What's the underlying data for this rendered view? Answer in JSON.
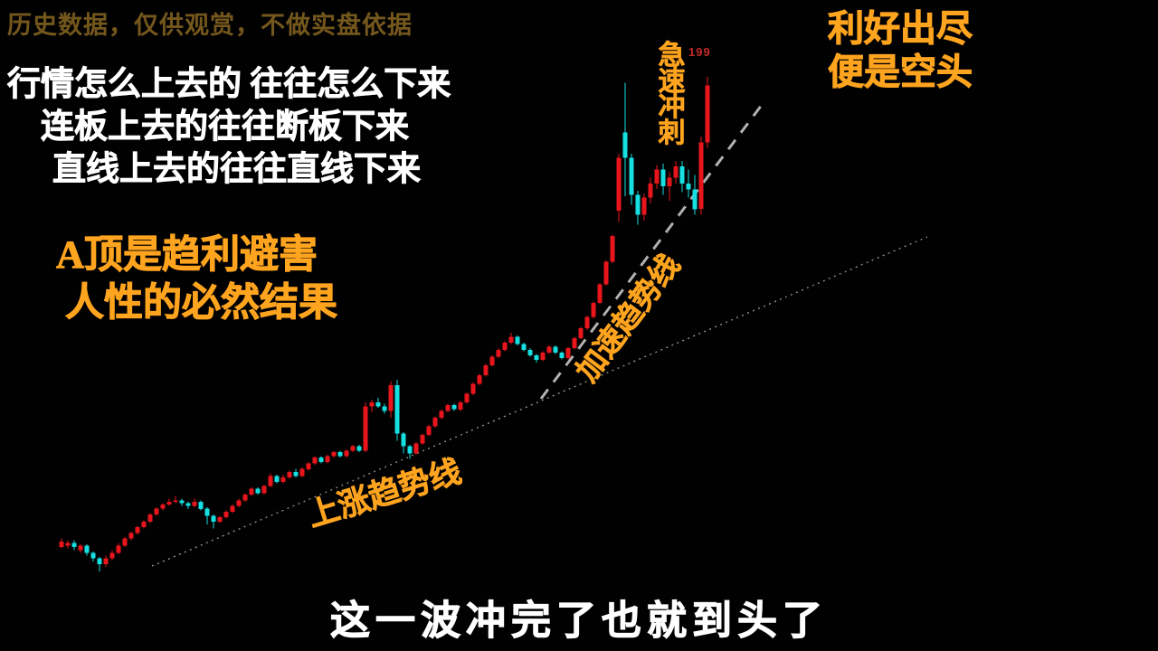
{
  "page": {
    "background": "#010101"
  },
  "disclaimer": {
    "text": "历史数据，仅供观赏，不做实盘依据",
    "color": "#74571c"
  },
  "left_block": {
    "color": "#ffffff",
    "lines": [
      "行情怎么上去的 往往怎么下来",
      "连板上去的往往断板下来",
      "直线上去的往往直线下来"
    ]
  },
  "thesis_block": {
    "color": "#ffa41e",
    "lines": [
      "A顶是趋利避害",
      "人性的必然结果"
    ]
  },
  "top_right_block": {
    "color": "#ffa41e",
    "lines": [
      "利好出尽",
      "便是空头"
    ]
  },
  "bottom_caption": {
    "text": "这一波冲完了也就到头了",
    "color": "#ffffff"
  },
  "chart_data": {
    "type": "candlestick",
    "title": "",
    "xlabel": "",
    "ylabel": "",
    "ylim": [
      24,
      200
    ],
    "grid": false,
    "up_color": "#e9151d",
    "down_color": "#16dfe2",
    "peak_label": {
      "text": "199",
      "value": 199,
      "color": "#c42a28"
    },
    "annotations": [
      {
        "id": "sprint",
        "text": "急速冲刺",
        "color": "#ffa41e",
        "orientation": "vertical"
      },
      {
        "id": "accel",
        "text": "加速趋势线",
        "color": "#ffa41e",
        "rotation_deg": -53
      },
      {
        "id": "rise",
        "text": "上涨趋势线",
        "color": "#ffa41e",
        "rotation_deg": -17
      }
    ],
    "trendlines": [
      {
        "name": "上涨趋势线",
        "style": "dotted",
        "color": "#8e8e7e"
      },
      {
        "name": "加速趋势线",
        "style": "dashed",
        "color": "#b0b0b0"
      }
    ],
    "candles_ohlc": [
      [
        33.5,
        36.5,
        33,
        35.5
      ],
      [
        34,
        36,
        33,
        35
      ],
      [
        35,
        36,
        32.5,
        33.5
      ],
      [
        32.5,
        34.5,
        31.5,
        34
      ],
      [
        34,
        34.5,
        30.5,
        31.5
      ],
      [
        31.5,
        32,
        28.5,
        29.5
      ],
      [
        29.5,
        30,
        25,
        27.5
      ],
      [
        27.5,
        30.5,
        26.5,
        29.5
      ],
      [
        29.5,
        32.5,
        29,
        31.5
      ],
      [
        31.5,
        35,
        31,
        34
      ],
      [
        34,
        37,
        33.5,
        36.5
      ],
      [
        36.5,
        39,
        36,
        38.5
      ],
      [
        38.5,
        41,
        38,
        40.5
      ],
      [
        40.5,
        43,
        40,
        42.5
      ],
      [
        42.5,
        45.5,
        42,
        45
      ],
      [
        45,
        47.5,
        44.5,
        47
      ],
      [
        47,
        49,
        46.5,
        48.5
      ],
      [
        48.5,
        50.5,
        48,
        49.5
      ],
      [
        49.5,
        51.5,
        49,
        50
      ],
      [
        50,
        50.5,
        48,
        49
      ],
      [
        49,
        49.5,
        47,
        48
      ],
      [
        48,
        50.5,
        47.5,
        49.5
      ],
      [
        49.5,
        50,
        46.5,
        47
      ],
      [
        47,
        47.5,
        41.5,
        44.5
      ],
      [
        44.5,
        45,
        40,
        42.5
      ],
      [
        42.5,
        44.5,
        42,
        44
      ],
      [
        44,
        46.5,
        43.5,
        46
      ],
      [
        46,
        48.5,
        45.5,
        48
      ],
      [
        48,
        50.5,
        47.5,
        50
      ],
      [
        50,
        52.5,
        49.5,
        52
      ],
      [
        52,
        54.5,
        51.5,
        54
      ],
      [
        54,
        54.5,
        52,
        52.5
      ],
      [
        52.5,
        55.5,
        52,
        55
      ],
      [
        55,
        59.5,
        54.5,
        58.5
      ],
      [
        58.5,
        59,
        56,
        56.5
      ],
      [
        56.5,
        59,
        56,
        58
      ],
      [
        58,
        60.5,
        57.5,
        60
      ],
      [
        60,
        61,
        58,
        58.5
      ],
      [
        58.5,
        61.5,
        58,
        61
      ],
      [
        61,
        63.5,
        60.5,
        63
      ],
      [
        63,
        65.5,
        62.5,
        65
      ],
      [
        65,
        65.5,
        63,
        63.5
      ],
      [
        63.5,
        66,
        63,
        65.5
      ],
      [
        65.5,
        67.5,
        65,
        67
      ],
      [
        67,
        67.5,
        65,
        65.5
      ],
      [
        65.5,
        68,
        65,
        67.5
      ],
      [
        67.5,
        69.5,
        67,
        69
      ],
      [
        69,
        69.5,
        67,
        67.5
      ],
      [
        67.5,
        84.5,
        67,
        83
      ],
      [
        83,
        85.5,
        81,
        84.5
      ],
      [
        84.5,
        86,
        82.5,
        83
      ],
      [
        83,
        84,
        80.5,
        81.5
      ],
      [
        81.5,
        92,
        79,
        90.5
      ],
      [
        90.5,
        92.5,
        71,
        73.5
      ],
      [
        73.5,
        74,
        66.5,
        69
      ],
      [
        69,
        69.5,
        64.5,
        66.5
      ],
      [
        66.5,
        70.5,
        66,
        70
      ],
      [
        70,
        73.5,
        69.5,
        73
      ],
      [
        73,
        76.5,
        72.5,
        76
      ],
      [
        76,
        79.5,
        75.5,
        79
      ],
      [
        79,
        82,
        78.5,
        81.5
      ],
      [
        81.5,
        84,
        81,
        83.5
      ],
      [
        83.5,
        84,
        81.5,
        82
      ],
      [
        82,
        85,
        81.5,
        84.5
      ],
      [
        84.5,
        88,
        84,
        87.5
      ],
      [
        87.5,
        91.5,
        87,
        91
      ],
      [
        91,
        94.5,
        90.5,
        94
      ],
      [
        94,
        98,
        93.5,
        97.5
      ],
      [
        97.5,
        101,
        97,
        100.5
      ],
      [
        100.5,
        103.5,
        100,
        103
      ],
      [
        103,
        106,
        102.5,
        105.5
      ],
      [
        105.5,
        109,
        105,
        107.5
      ],
      [
        107.5,
        108,
        104.5,
        105
      ],
      [
        105,
        105.5,
        102.5,
        103
      ],
      [
        103,
        103.5,
        100.5,
        101
      ],
      [
        101,
        101.5,
        98.5,
        99.5
      ],
      [
        99.5,
        102.5,
        99,
        102
      ],
      [
        102,
        104.5,
        101.5,
        104
      ],
      [
        104,
        104.5,
        101.5,
        102
      ],
      [
        102,
        102.5,
        99.5,
        100
      ],
      [
        100,
        104,
        99.5,
        103.5
      ],
      [
        103.5,
        107.5,
        103,
        107
      ],
      [
        107,
        111,
        106.5,
        110.5
      ],
      [
        110.5,
        115,
        110,
        114.5
      ],
      [
        114.5,
        120,
        114,
        119.5
      ],
      [
        119.5,
        126.5,
        119,
        126
      ],
      [
        126,
        134.5,
        125.5,
        134
      ],
      [
        134,
        143.5,
        133.5,
        143
      ],
      [
        152,
        172,
        148,
        170.5
      ],
      [
        179.5,
        197,
        157,
        170.5
      ],
      [
        170.5,
        172,
        154,
        157.5
      ],
      [
        157.5,
        159,
        147,
        150.5
      ],
      [
        150.5,
        158,
        148.5,
        156.5
      ],
      [
        156.5,
        163.5,
        154.5,
        161.5
      ],
      [
        161.5,
        168,
        159.5,
        166.5
      ],
      [
        166.5,
        168.5,
        157.5,
        160.5
      ],
      [
        160.5,
        165.5,
        155.5,
        163.5
      ],
      [
        163.5,
        169.5,
        161.5,
        167.5
      ],
      [
        167.5,
        169.5,
        158.5,
        161.5
      ],
      [
        161.5,
        166.5,
        156.5,
        159.5
      ],
      [
        159.5,
        164.5,
        150.5,
        152.5
      ],
      [
        152.5,
        178,
        150.5,
        176
      ],
      [
        176,
        199,
        174,
        196
      ]
    ]
  }
}
